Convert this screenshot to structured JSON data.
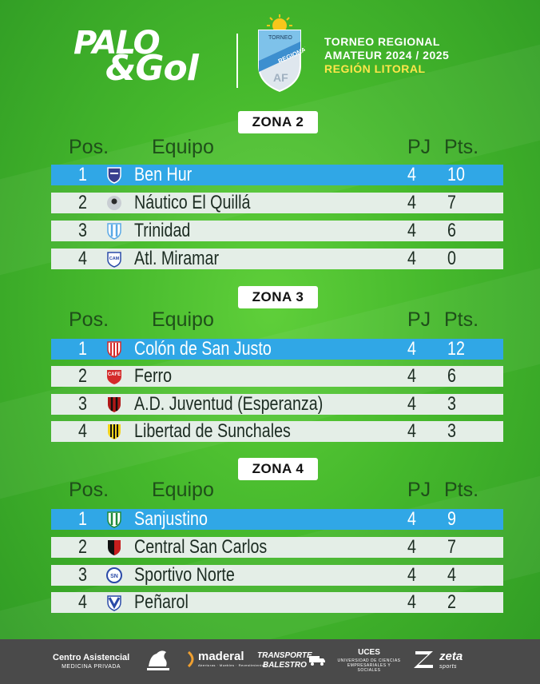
{
  "header": {
    "logo_line1": "PALO",
    "logo_line2": "&Gol",
    "shield_top": "TORNEO",
    "shield_band": "REGIONAL",
    "shield_bottom": "AF",
    "torneo_line1": "TORNEO REGIONAL",
    "torneo_line2": "AMATEUR 2024 / 2025",
    "region": "REGIÓN LITORAL"
  },
  "columns": {
    "pos": "Pos.",
    "team": "Equipo",
    "pj": "PJ",
    "pts": "Pts."
  },
  "zones": [
    {
      "title": "ZONA 2",
      "rows": [
        {
          "pos": "1",
          "team": "Ben Hur",
          "pj": "4",
          "pts": "10"
        },
        {
          "pos": "2",
          "team": "Náutico El Quillá",
          "pj": "4",
          "pts": "7"
        },
        {
          "pos": "3",
          "team": "Trinidad",
          "pj": "4",
          "pts": "6"
        },
        {
          "pos": "4",
          "team": "Atl. Miramar",
          "pj": "4",
          "pts": "0"
        }
      ]
    },
    {
      "title": "ZONA 3",
      "rows": [
        {
          "pos": "1",
          "team": "Colón de San Justo",
          "pj": "4",
          "pts": "12"
        },
        {
          "pos": "2",
          "team": "Ferro",
          "pj": "4",
          "pts": "6"
        },
        {
          "pos": "3",
          "team": "A.D. Juventud (Esperanza)",
          "pj": "4",
          "pts": "3"
        },
        {
          "pos": "4",
          "team": "Libertad de Sunchales",
          "pj": "4",
          "pts": "3"
        }
      ]
    },
    {
      "title": "ZONA 4",
      "rows": [
        {
          "pos": "1",
          "team": "Sanjustino",
          "pj": "4",
          "pts": "9"
        },
        {
          "pos": "2",
          "team": "Central San Carlos",
          "pj": "4",
          "pts": "7"
        },
        {
          "pos": "3",
          "team": "Sportivo Norte",
          "pj": "4",
          "pts": "4"
        },
        {
          "pos": "4",
          "team": "Peñarol",
          "pj": "4",
          "pts": "2"
        }
      ]
    }
  ],
  "badges": [
    [
      "ben-hur-crest-icon",
      "nautico-crest-icon",
      "trinidad-crest-icon",
      "miramar-crest-icon"
    ],
    [
      "colon-crest-icon",
      "ferro-crest-icon",
      "juventud-crest-icon",
      "libertad-crest-icon"
    ],
    [
      "sanjustino-crest-icon",
      "central-san-carlos-crest-icon",
      "sportivo-norte-crest-icon",
      "penarol-crest-icon"
    ]
  ],
  "badge_text": {
    "ferro": "CAFE",
    "miramar": "CAM",
    "sportivo_norte": "SN"
  },
  "sponsors": {
    "centro_main": "Centro Asistencial",
    "centro_sub": "MEDICINA PRIVADA",
    "maderal": "maderal",
    "maderal_sub": "Aberturas · Muebles · Revestimientos",
    "transporte_line1": "TRANSPORTE",
    "transporte_line2": "BALESTRO",
    "uces": "UCES",
    "uces_sub": "UNIVERSIDAD DE CIENCIAS EMPRESARIALES Y SOCIALES",
    "zeta": "zeta",
    "zeta_sub": "sports"
  },
  "colors": {
    "background": "#45b82c",
    "leader_row": "#30a7e6",
    "row": "#e4eee7",
    "footer": "#4a4a4a",
    "region_text": "#ffe64a"
  }
}
